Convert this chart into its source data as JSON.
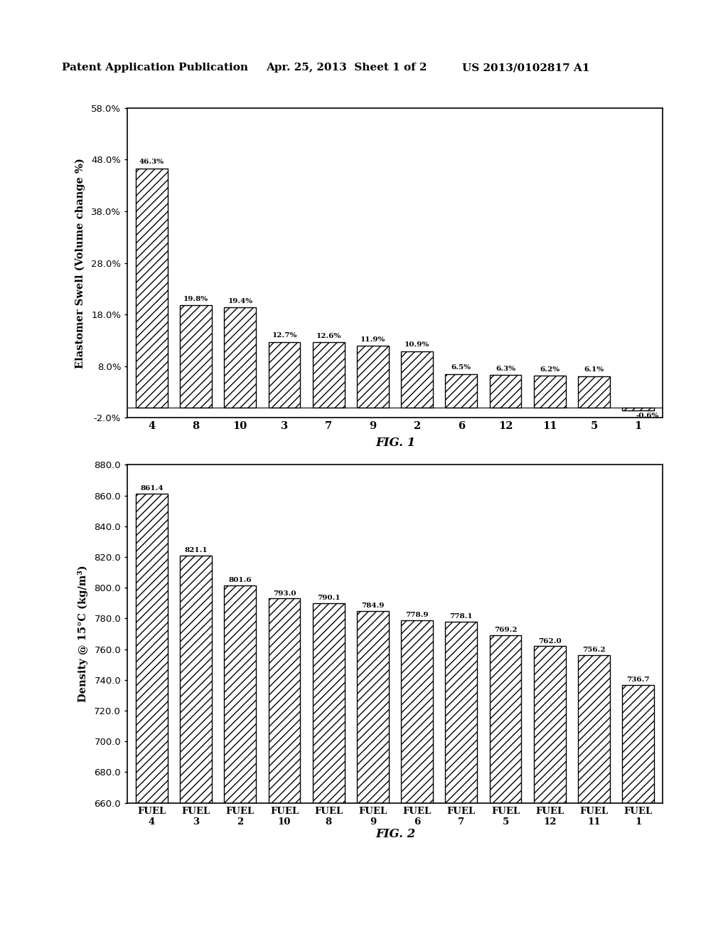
{
  "fig1": {
    "categories": [
      "4",
      "8",
      "10",
      "3",
      "7",
      "9",
      "2",
      "6",
      "12",
      "11",
      "5",
      "1"
    ],
    "values": [
      46.3,
      19.8,
      19.4,
      12.7,
      12.6,
      11.9,
      10.9,
      6.5,
      6.3,
      6.2,
      6.1,
      -0.6
    ],
    "ylabel": "Elastomer Swell (Volume change %)",
    "title": "FIG. 1",
    "ylim": [
      -2.0,
      58.0
    ],
    "yticks": [
      -2.0,
      8.0,
      18.0,
      28.0,
      38.0,
      48.0,
      58.0
    ]
  },
  "fig2": {
    "categories_line1": [
      "FUEL",
      "FUEL",
      "FUEL",
      "FUEL",
      "FUEL",
      "FUEL",
      "FUEL",
      "FUEL",
      "FUEL",
      "FUEL",
      "FUEL",
      "FUEL"
    ],
    "categories_line2": [
      "4",
      "3",
      "2",
      "10",
      "8",
      "9",
      "6",
      "7",
      "5",
      "12",
      "11",
      "1"
    ],
    "values": [
      861.4,
      821.1,
      801.6,
      793.0,
      790.1,
      784.9,
      778.9,
      778.1,
      769.2,
      762.0,
      756.2,
      736.7
    ],
    "ylabel": "Density @ 15°C (kg/m³)",
    "title": "FIG. 2",
    "ylim": [
      660.0,
      880.0
    ],
    "yticks": [
      660.0,
      680.0,
      700.0,
      720.0,
      740.0,
      760.0,
      780.0,
      800.0,
      820.0,
      840.0,
      860.0,
      880.0
    ]
  },
  "header_left": "Patent Application Publication",
  "header_mid": "Apr. 25, 2013  Sheet 1 of 2",
  "header_right": "US 2013/0102817 A1",
  "bg_color": "#ffffff",
  "bar_color": "#ffffff",
  "hatch": "///",
  "edge_color": "#000000"
}
